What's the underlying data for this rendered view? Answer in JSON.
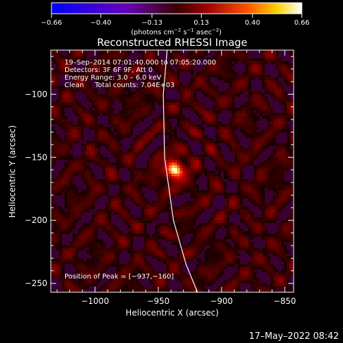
{
  "chart_data": {
    "type": "heatmap",
    "title": "Reconstructed RHESSI Image",
    "xlabel": "Heliocentric X (arcsec)",
    "ylabel": "Heliocentric Y (arcsec)",
    "xlim": [
      -1035,
      -843
    ],
    "ylim": [
      -257,
      -65
    ],
    "x_ticks": [
      -1000,
      -950,
      -900,
      -850
    ],
    "x_tick_labels": [
      "−1000",
      "−950",
      "−900",
      "−850"
    ],
    "y_ticks": [
      -100,
      -150,
      -200,
      -250
    ],
    "y_tick_labels": [
      "−100",
      "−150",
      "−200",
      "−250"
    ],
    "colorbar": {
      "min": -0.66,
      "max": 0.66,
      "ticks": [
        -0.66,
        -0.4,
        -0.13,
        0.13,
        0.4,
        0.66
      ],
      "tick_labels": [
        "−0.66",
        "−0.40",
        "−0.13",
        "0.13",
        "0.40",
        "0.66"
      ],
      "unit_prefix": "(photons cm",
      "unit_exp1": "−2",
      "unit_mid1": " s",
      "unit_exp2": "−1",
      "unit_mid2": " asec",
      "unit_exp3": "−2",
      "unit_suffix": ")"
    },
    "source": {
      "x": -937,
      "y": -160,
      "peak": 0.66
    },
    "limb": [
      [
        -943,
        -65
      ],
      [
        -946,
        -100
      ],
      [
        -945,
        -150
      ],
      [
        -938,
        -200
      ],
      [
        -928,
        -235
      ],
      [
        -919,
        -257
      ]
    ]
  },
  "annotations": {
    "line1": "19–Sep–2014 07:01:40.000 to 07:05:20.000",
    "line2": "Detectors: 3F 6F 9F, Att 0",
    "line3": "Energy Range: 3.0 – 6.0 keV",
    "line4": "Clean     Total counts: 7.04E+03",
    "peak": "Position of Peak = [−937,−160]"
  },
  "footer": {
    "date": "17–May–2022 08:42"
  },
  "colors": {
    "background": "#000000",
    "limb": "#ffffff",
    "foreground": "#ffffff"
  }
}
